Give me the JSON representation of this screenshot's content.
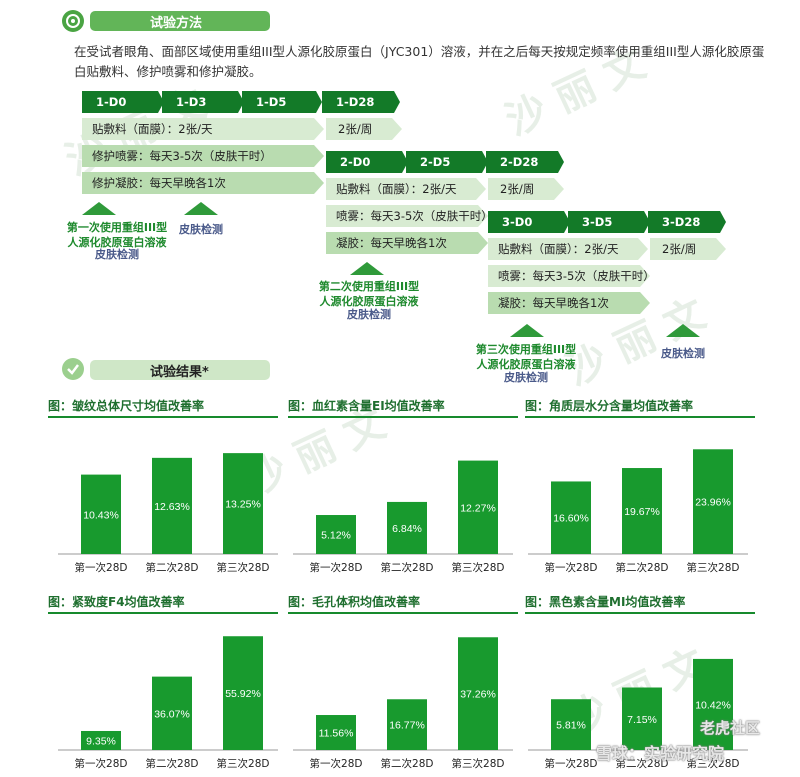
{
  "method": {
    "heading": "试验方法",
    "intro_line1": "在受试者眼角、面部区域使用重组III型人源化胶原蛋白（JYC301）溶液，并在之后每天按规定频率使用重组III型人源化胶原蛋",
    "intro_line2": "白贴敷料、修护喷雾和修护凝胶。"
  },
  "stage1": {
    "days": [
      "1-D0",
      "1-D3",
      "1-D5",
      "1-D28"
    ],
    "row_dressing": "贴敷料（面膜）：2张/天",
    "row_dressing_after": "2张/周",
    "row_spray": "修护喷雾：每天3-5次（皮肤干时）",
    "row_gel": "修护凝胶：每天早晚各1次",
    "note_first": "第一次使用重组III型人源化胶原蛋白溶液",
    "note_first_skin": "皮肤检测",
    "note_skin": "皮肤检测"
  },
  "stage2": {
    "days": [
      "2-D0",
      "2-D5",
      "2-D28"
    ],
    "row_dressing": "贴敷料（面膜）：2张/天",
    "row_dressing_after": "2张/周",
    "row_spray": "喷雾：每天3-5次（皮肤干时）",
    "row_gel": "凝胶：每天早晚各1次",
    "note_second": "第二次使用重组III型人源化胶原蛋白溶液",
    "note_second_skin": "皮肤检测"
  },
  "stage3": {
    "days": [
      "3-D0",
      "3-D5",
      "3-D28"
    ],
    "row_dressing": "贴敷料（面膜）：2张/天",
    "row_dressing_after": "2张/周",
    "row_spray": "喷雾：每天3-5次（皮肤干时）",
    "row_gel": "凝胶：每天早晚各1次",
    "note_third": "第三次使用重组III型人源化胶原蛋白溶液",
    "note_third_skin": "皮肤检测",
    "note_skin": "皮肤检测"
  },
  "results": {
    "heading": "试验结果*"
  },
  "watermark": {
    "corner_top": "老虎社区",
    "corner_bottom": "雪球：实验研究院"
  },
  "colors": {
    "bar": "#189a2e",
    "dark_green": "#137a28",
    "accent": "#62b558"
  },
  "chart_data": [
    {
      "type": "bar",
      "title": "图：皱纹总体尺寸均值改善率",
      "categories": [
        "第一次28D",
        "第二次28D",
        "第三次28D"
      ],
      "values": [
        10.43,
        12.63,
        13.25
      ],
      "labels": [
        "10.43%",
        "12.63%",
        "13.25%"
      ],
      "ylim": [
        0,
        15.5
      ]
    },
    {
      "type": "bar",
      "title": "图：血红素含量EI均值改善率",
      "categories": [
        "第一次28D",
        "第二次28D",
        "第三次28D"
      ],
      "values": [
        5.12,
        6.84,
        12.27
      ],
      "labels": [
        "5.12%",
        "6.84%",
        "12.27%"
      ],
      "ylim": [
        0,
        15.5
      ]
    },
    {
      "type": "bar",
      "title": "图：角质层水分含量均值改善率",
      "categories": [
        "第一次28D",
        "第二次28D",
        "第三次28D"
      ],
      "values": [
        16.6,
        19.67,
        23.96
      ],
      "labels": [
        "16.60%",
        "19.67%",
        "23.96%"
      ],
      "ylim": [
        0,
        27
      ]
    },
    {
      "type": "bar",
      "title": "图：紧致度F4均值改善率",
      "categories": [
        "第一次28D",
        "第二次28D",
        "第三次28D"
      ],
      "values": [
        9.35,
        36.07,
        55.92
      ],
      "labels": [
        "9.35%",
        "36.07%",
        "55.92%"
      ],
      "ylim": [
        0,
        58
      ]
    },
    {
      "type": "bar",
      "title": "图：毛孔体积均值改善率",
      "categories": [
        "第一次28D",
        "第二次28D",
        "第三次28D"
      ],
      "values": [
        11.56,
        16.77,
        37.26
      ],
      "labels": [
        "11.56%",
        "16.77%",
        "37.26%"
      ],
      "ylim": [
        0,
        39
      ]
    },
    {
      "type": "bar",
      "title": "图：黑色素含量MI均值改善率",
      "categories": [
        "第一次28D",
        "第二次28D",
        "第三次28D"
      ],
      "values": [
        5.81,
        7.15,
        10.42
      ],
      "labels": [
        "5.81%",
        "7.15%",
        "10.42%"
      ],
      "ylim": [
        0,
        13.5
      ]
    }
  ]
}
